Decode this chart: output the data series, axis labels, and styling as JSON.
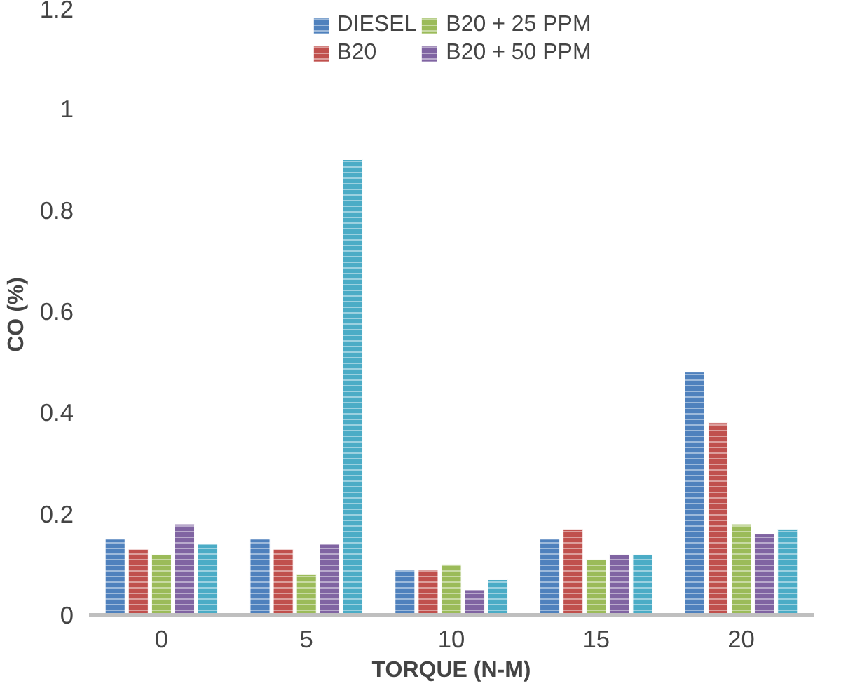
{
  "chart_data": {
    "type": "bar",
    "xlabel": "TORQUE (N-M)",
    "ylabel": "CO  (%)",
    "categories": [
      "0",
      "5",
      "10",
      "15",
      "20"
    ],
    "series": [
      {
        "name": "DIESEL",
        "color": "#4f81bd",
        "values": [
          0.15,
          0.15,
          0.09,
          0.15,
          0.48
        ]
      },
      {
        "name": "B20",
        "color": "#c0504d",
        "values": [
          0.13,
          0.13,
          0.09,
          0.17,
          0.38
        ]
      },
      {
        "name": "B20 + 25 PPM",
        "color": "#9bbb59",
        "values": [
          0.12,
          0.08,
          0.1,
          0.11,
          0.18
        ]
      },
      {
        "name": "B20 + 50 PPM",
        "color": "#8064a2",
        "values": [
          0.18,
          0.14,
          0.05,
          0.12,
          0.16
        ]
      },
      {
        "color": "#4bacc6",
        "values": [
          0.14,
          0.9,
          0.07,
          0.12,
          0.17
        ]
      }
    ],
    "ylim": [
      0,
      1.2
    ],
    "yticks": [
      0,
      0.2,
      0.4,
      0.6,
      0.8,
      1,
      1.2
    ],
    "grid": false,
    "legend": "top"
  }
}
